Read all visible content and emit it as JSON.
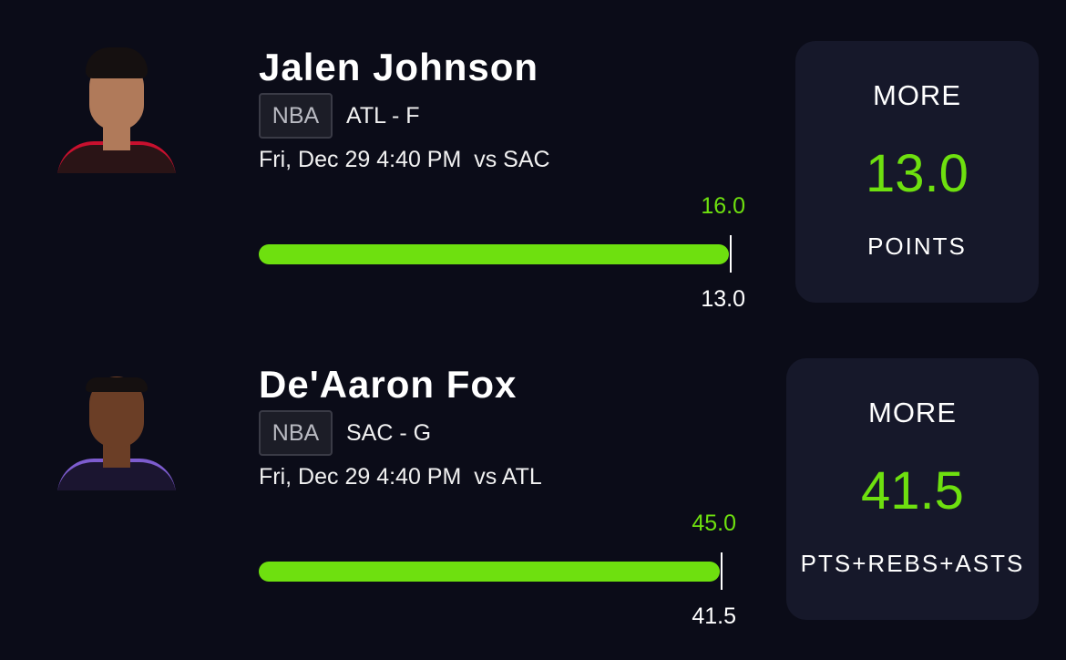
{
  "picks": [
    {
      "name": "Jalen Johnson",
      "league": "NBA",
      "team_position": "ATL - F",
      "game": "Fri, Dec 29 4:40 PM  vs SAC",
      "actual": {
        "value": 16,
        "label": "16.0"
      },
      "line": {
        "value": 13,
        "label": "13.0"
      },
      "choice": "MORE",
      "stat": "POINTS"
    },
    {
      "name": "De'Aaron Fox",
      "league": "NBA",
      "team_position": "SAC - G",
      "game": "Fri, Dec 29 4:40 PM  vs ATL",
      "actual": {
        "value": 45,
        "label": "45.0"
      },
      "line": {
        "value": 41.5,
        "label": "41.5"
      },
      "choice": "MORE",
      "stat": "PTS+REBS+ASTS"
    }
  ]
}
